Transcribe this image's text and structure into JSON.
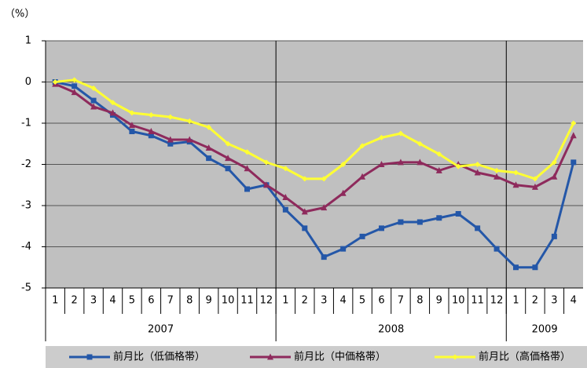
{
  "chart_data": {
    "type": "line",
    "unit_label": "（%）",
    "categories": [
      "1",
      "2",
      "3",
      "4",
      "5",
      "6",
      "7",
      "8",
      "9",
      "10",
      "11",
      "12",
      "1",
      "2",
      "3",
      "4",
      "5",
      "6",
      "7",
      "8",
      "9",
      "10",
      "11",
      "12",
      "1",
      "2",
      "3",
      "4"
    ],
    "years": [
      "2007",
      "2008",
      "2009"
    ],
    "ylim": [
      -5,
      1
    ],
    "yticks": [
      1,
      0,
      -1,
      -2,
      -3,
      -4,
      -5
    ],
    "grid": true,
    "legend": "bottom",
    "series": [
      {
        "name": "前月比（低価格帯）",
        "color": "#2457a8",
        "marker": "square",
        "values": [
          0.0,
          -0.1,
          -0.45,
          -0.8,
          -1.2,
          -1.3,
          -1.5,
          -1.45,
          -1.85,
          -2.1,
          -2.6,
          -2.5,
          -3.1,
          -3.55,
          -4.25,
          -4.05,
          -3.75,
          -3.55,
          -3.4,
          -3.4,
          -3.3,
          -3.2,
          -3.55,
          -4.05,
          -4.5,
          -4.5,
          -3.75,
          -1.95
        ]
      },
      {
        "name": "前月比（中価格帯）",
        "color": "#8e2a5c",
        "marker": "triangle",
        "values": [
          -0.05,
          -0.25,
          -0.6,
          -0.75,
          -1.05,
          -1.2,
          -1.4,
          -1.4,
          -1.6,
          -1.85,
          -2.1,
          -2.5,
          -2.8,
          -3.15,
          -3.05,
          -2.7,
          -2.3,
          -2.0,
          -1.95,
          -1.95,
          -2.15,
          -2.0,
          -2.2,
          -2.3,
          -2.5,
          -2.55,
          -2.3,
          -1.3
        ]
      },
      {
        "name": "前月比（高価格帯）",
        "color": "#ffff33",
        "marker": "diamond",
        "values": [
          0.0,
          0.05,
          -0.15,
          -0.5,
          -0.75,
          -0.8,
          -0.85,
          -0.95,
          -1.1,
          -1.5,
          -1.7,
          -1.95,
          -2.1,
          -2.35,
          -2.35,
          -2.0,
          -1.55,
          -1.35,
          -1.25,
          -1.5,
          -1.75,
          -2.05,
          -2.0,
          -2.15,
          -2.2,
          -2.35,
          -1.95,
          -1.0
        ]
      }
    ]
  }
}
